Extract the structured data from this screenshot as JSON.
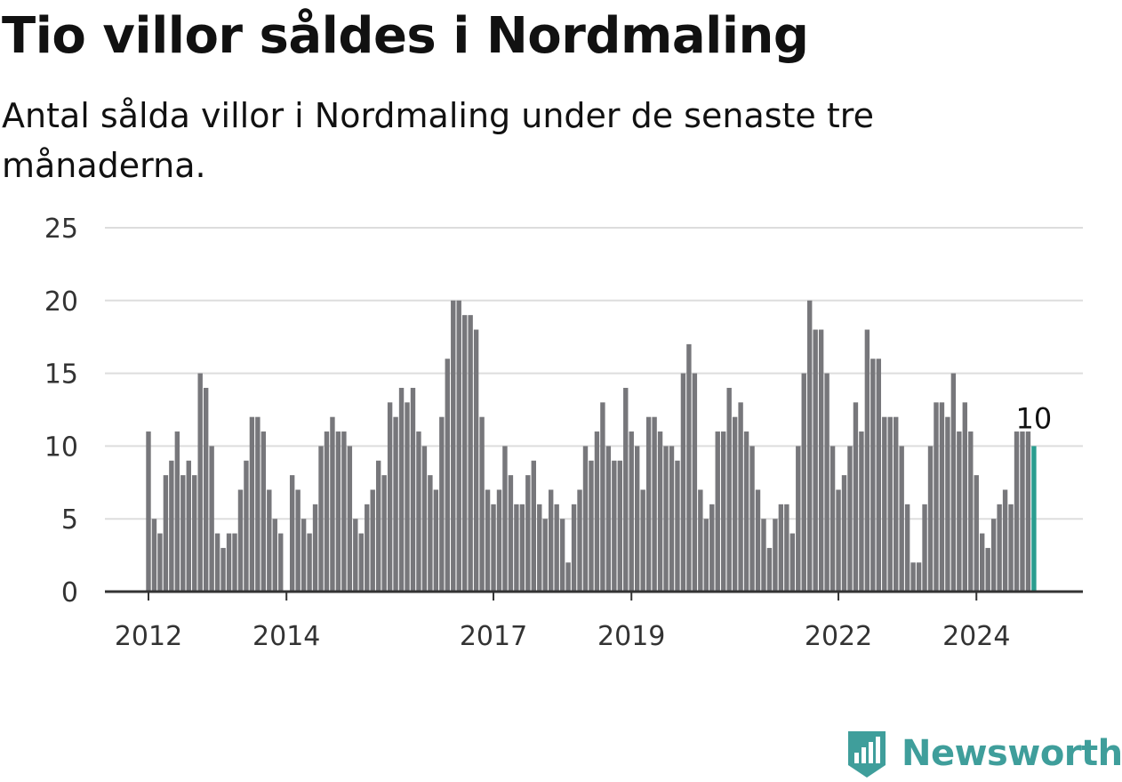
{
  "colors": {
    "bar": "#77777b",
    "highlight": "#2a9d8f",
    "grid": "#dddddd",
    "axis": "#333333",
    "brand": "#3f9e9b"
  },
  "brand": {
    "name": "Newsworthy"
  },
  "chart_data": {
    "type": "bar",
    "title": "Tio villor såldes i Nordmaling",
    "subtitle": "Antal sålda villor i Nordmaling under de senaste tre månaderna.",
    "xlabel": "",
    "ylabel": "",
    "ylim": [
      0,
      25
    ],
    "yticks": [
      0,
      5,
      10,
      15,
      20,
      25
    ],
    "grid": true,
    "start_month": "2012-01",
    "xtick_labels": [
      {
        "label": "2012",
        "index": 0
      },
      {
        "label": "2014",
        "index": 24
      },
      {
        "label": "2017",
        "index": 60
      },
      {
        "label": "2019",
        "index": 84
      },
      {
        "label": "2022",
        "index": 120
      },
      {
        "label": "2024",
        "index": 144
      }
    ],
    "values": [
      11,
      5,
      4,
      8,
      9,
      11,
      8,
      9,
      8,
      15,
      14,
      10,
      4,
      3,
      4,
      4,
      7,
      9,
      12,
      12,
      11,
      7,
      5,
      4,
      null,
      8,
      7,
      5,
      4,
      6,
      10,
      11,
      12,
      11,
      11,
      10,
      5,
      4,
      6,
      7,
      9,
      8,
      13,
      12,
      14,
      13,
      14,
      11,
      10,
      8,
      7,
      12,
      16,
      20,
      20,
      19,
      19,
      18,
      12,
      7,
      6,
      7,
      10,
      8,
      6,
      6,
      8,
      9,
      6,
      5,
      7,
      6,
      5,
      2,
      6,
      7,
      10,
      9,
      11,
      13,
      10,
      9,
      9,
      14,
      11,
      10,
      7,
      12,
      12,
      11,
      10,
      10,
      9,
      15,
      17,
      15,
      7,
      5,
      6,
      11,
      11,
      14,
      12,
      13,
      11,
      10,
      7,
      5,
      3,
      5,
      6,
      6,
      4,
      10,
      15,
      20,
      18,
      18,
      15,
      10,
      7,
      8,
      10,
      13,
      11,
      18,
      16,
      16,
      12,
      12,
      12,
      10,
      6,
      2,
      2,
      6,
      10,
      13,
      13,
      12,
      15,
      11,
      13,
      11,
      8,
      4,
      3,
      5,
      6,
      7,
      6,
      11,
      11,
      11,
      10
    ],
    "highlight_label": "10"
  }
}
